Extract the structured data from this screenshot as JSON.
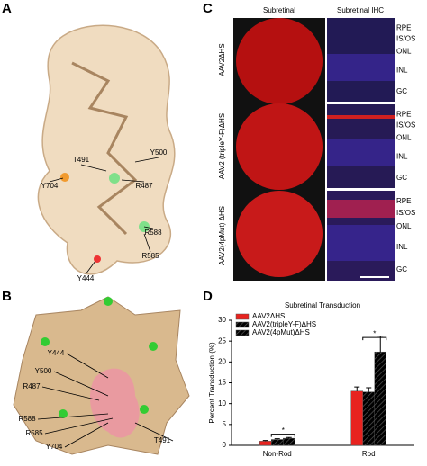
{
  "panels": {
    "A": {
      "letter": "A",
      "labels": [
        "T491",
        "Y500",
        "R487",
        "Y704",
        "R588",
        "R585",
        "Y444"
      ]
    },
    "B": {
      "letter": "B",
      "labels": [
        "Y444",
        "Y500",
        "R487",
        "R588",
        "R585",
        "Y704",
        "T491"
      ]
    },
    "C": {
      "letter": "C",
      "columns": [
        "Subretinal",
        "Subretinal IHC"
      ],
      "rows": [
        {
          "label": "AAV2ΔHS",
          "layers": [
            "RPE",
            "IS/OS",
            "ONL",
            "INL",
            "GC"
          ]
        },
        {
          "label": "AAV2 (tripleY-F)ΔHS",
          "layers": [
            "RPE",
            "IS/OS",
            "ONL",
            "INL",
            "GC"
          ]
        },
        {
          "label": "AAV2(4pMut) ΔHS",
          "layers": [
            "RPE",
            "IS/OS",
            "ONL",
            "INL",
            "GC"
          ]
        }
      ]
    },
    "D": {
      "letter": "D"
    }
  },
  "chart_data": {
    "type": "bar",
    "title": "Subretinal Transduction",
    "y_label": "Percent Transduction (%)",
    "categories": [
      "Non-Rod",
      "Rod"
    ],
    "series": [
      {
        "name": "AAV2ΔHS",
        "color": "#e8231f",
        "hatch": false,
        "values": [
          1.0,
          13.0
        ],
        "errors": [
          0.15,
          1.0
        ]
      },
      {
        "name": "AAV2(tripleY-F)ΔHS",
        "color": "#3fe0e0",
        "hatch": true,
        "values": [
          1.4,
          12.8
        ],
        "errors": [
          0.2,
          1.0
        ]
      },
      {
        "name": "AAV2(4pMut)ΔHS",
        "color": "#bdbdbd",
        "hatch": true,
        "values": [
          1.7,
          22.4
        ],
        "errors": [
          0.2,
          3.8
        ]
      }
    ],
    "ylim": [
      0,
      30
    ],
    "yticks": [
      0,
      5,
      10,
      15,
      20,
      25,
      30
    ],
    "annotations": [
      "*",
      "*"
    ]
  }
}
